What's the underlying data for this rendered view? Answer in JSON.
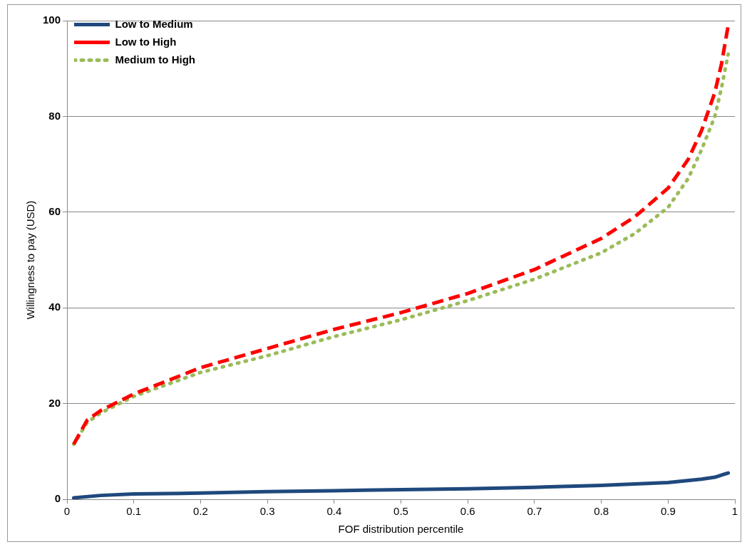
{
  "chart_data": {
    "type": "line",
    "xlabel": "FOF distribution percentile",
    "ylabel": "Willingness to pay (USD)",
    "xlim": [
      0,
      1
    ],
    "xticks": [
      0,
      0.1,
      0.2,
      0.3,
      0.4,
      0.5,
      0.6,
      0.7,
      0.8,
      0.9,
      1
    ],
    "ylim": [
      0,
      100
    ],
    "yticks": [
      0,
      20,
      40,
      60,
      80,
      100
    ],
    "grid": "y",
    "legend": "top left",
    "marker": "none",
    "series": [
      {
        "name": "Low to Medium",
        "color": "#1f497d",
        "line_style": "solid",
        "x": [
          0.01,
          0.05,
          0.1,
          0.2,
          0.3,
          0.4,
          0.5,
          0.6,
          0.7,
          0.8,
          0.9,
          0.95,
          0.97,
          0.99
        ],
        "values": [
          0.3,
          0.8,
          1.1,
          1.3,
          1.6,
          1.8,
          2.0,
          2.2,
          2.5,
          2.9,
          3.5,
          4.2,
          4.6,
          5.5
        ]
      },
      {
        "name": "Low to High",
        "color": "#ff0000",
        "line_style": "dashed",
        "x": [
          0.01,
          0.03,
          0.05,
          0.1,
          0.2,
          0.3,
          0.4,
          0.5,
          0.6,
          0.7,
          0.8,
          0.85,
          0.9,
          0.93,
          0.95,
          0.97,
          0.98,
          0.99
        ],
        "values": [
          11.5,
          16.5,
          18.5,
          22,
          27.5,
          31.5,
          35.5,
          39,
          43,
          48,
          54.5,
          59,
          65,
          71,
          77,
          85,
          91,
          99
        ]
      },
      {
        "name": "Medium to High",
        "color": "#9bbb59",
        "line_style": "dotted",
        "x": [
          0.01,
          0.03,
          0.05,
          0.1,
          0.2,
          0.3,
          0.4,
          0.5,
          0.6,
          0.7,
          0.8,
          0.85,
          0.9,
          0.93,
          0.95,
          0.97,
          0.98,
          0.99
        ],
        "values": [
          11.5,
          16,
          18,
          21.5,
          26.5,
          30,
          34,
          37.5,
          41.5,
          46,
          51.5,
          55.5,
          61,
          67,
          73,
          80,
          86,
          93
        ]
      }
    ]
  }
}
